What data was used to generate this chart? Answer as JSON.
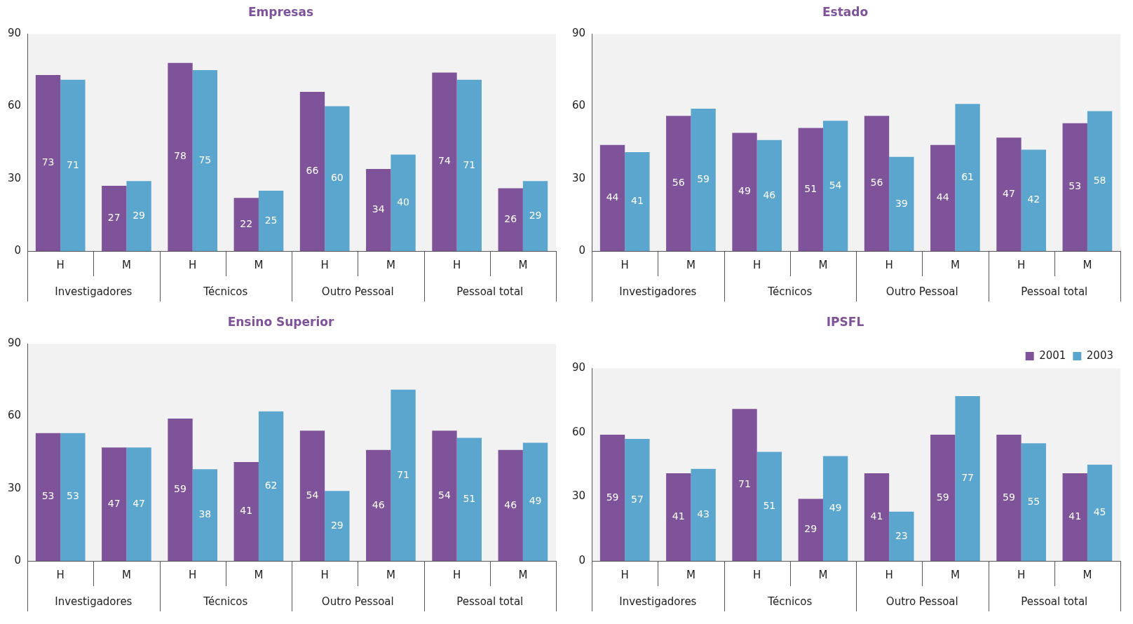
{
  "chart_data": [
    {
      "type": "bar",
      "title": "Empresas",
      "categories": [
        "H",
        "M",
        "H",
        "M",
        "H",
        "M",
        "H",
        "M"
      ],
      "annotations": [
        "Investigadores",
        "Técnicos",
        "Outro Pessoal",
        "Pessoal total"
      ],
      "ylim": [
        0,
        90
      ],
      "yticks": [
        0,
        30,
        60,
        90
      ],
      "grid": false,
      "legend": false,
      "data_labels": true,
      "series": [
        {
          "color": "#7f5399",
          "values": [
            73,
            27,
            78,
            22,
            66,
            34,
            74,
            26
          ]
        },
        {
          "color": "#5ba6cf",
          "values": [
            71,
            29,
            75,
            25,
            60,
            40,
            71,
            29
          ]
        }
      ]
    },
    {
      "type": "bar",
      "title": "Estado",
      "categories": [
        "H",
        "M",
        "H",
        "M",
        "H",
        "M",
        "H",
        "M"
      ],
      "annotations": [
        "Investigadores",
        "Técnicos",
        "Outro Pessoal",
        "Pessoal total"
      ],
      "ylim": [
        0,
        90
      ],
      "yticks": [
        0,
        30,
        60,
        90
      ],
      "grid": false,
      "legend": false,
      "data_labels": true,
      "series": [
        {
          "color": "#7f5399",
          "values": [
            44,
            56,
            49,
            51,
            56,
            44,
            47,
            53
          ]
        },
        {
          "color": "#5ba6cf",
          "values": [
            41,
            59,
            46,
            54,
            39,
            61,
            42,
            58
          ]
        }
      ]
    },
    {
      "type": "bar",
      "title": "Ensino Superior",
      "categories": [
        "H",
        "M",
        "H",
        "M",
        "H",
        "M",
        "H",
        "M"
      ],
      "annotations": [
        "Investigadores",
        "Técnicos",
        "Outro Pessoal",
        "Pessoal total"
      ],
      "ylim": [
        0,
        90
      ],
      "yticks": [
        0,
        30,
        60,
        90
      ],
      "grid": false,
      "legend": false,
      "data_labels": true,
      "series": [
        {
          "color": "#7f5399",
          "values": [
            53,
            47,
            59,
            41,
            54,
            46,
            54,
            46
          ]
        },
        {
          "color": "#5ba6cf",
          "values": [
            53,
            47,
            38,
            62,
            29,
            71,
            51,
            49
          ]
        }
      ]
    },
    {
      "type": "bar",
      "title": "IPSFL",
      "categories": [
        "H",
        "M",
        "H",
        "M",
        "H",
        "M",
        "H",
        "M"
      ],
      "annotations": [
        "Investigadores",
        "Técnicos",
        "Outro Pessoal",
        "Pessoal total"
      ],
      "ylim": [
        0,
        90
      ],
      "yticks": [
        0,
        30,
        60,
        90
      ],
      "grid": false,
      "legend": "top right",
      "data_labels": true,
      "series": [
        {
          "name": "2001",
          "color": "#7f5399",
          "values": [
            59,
            41,
            71,
            29,
            41,
            59,
            59,
            41
          ]
        },
        {
          "name": "2003",
          "color": "#5ba6cf",
          "values": [
            57,
            43,
            51,
            49,
            23,
            77,
            55,
            45
          ]
        }
      ]
    }
  ]
}
